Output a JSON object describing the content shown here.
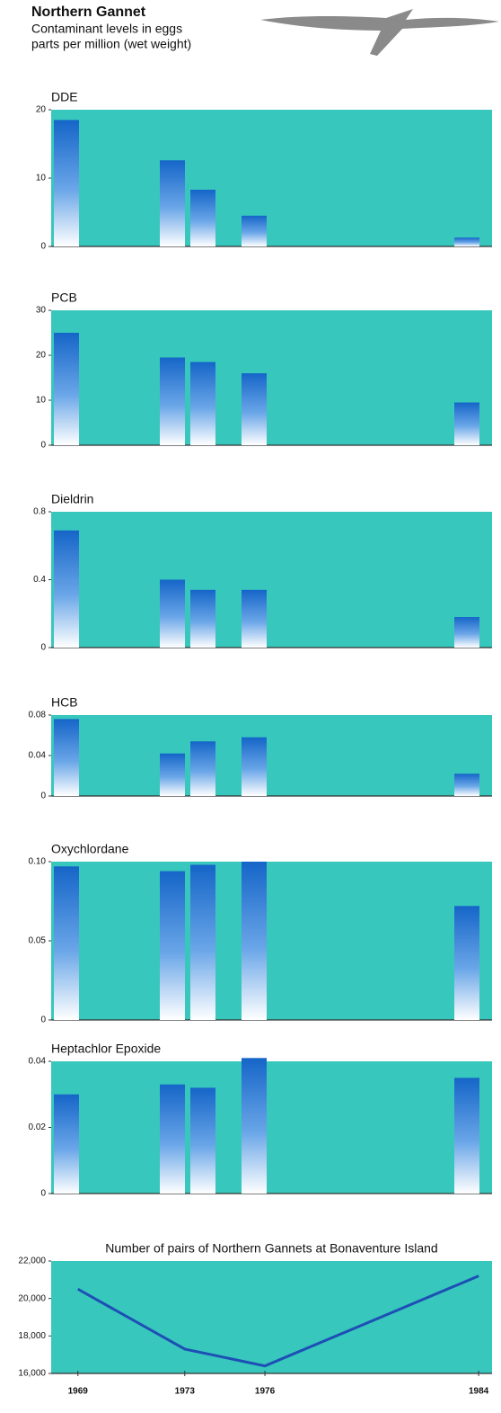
{
  "header": {
    "title": "Northern Gannet",
    "subtitle": "Contaminant levels in eggs",
    "units": "parts per million (wet weight)"
  },
  "chart_data": [
    {
      "type": "bar",
      "title": "DDE",
      "categories": [
        null,
        null,
        null,
        null,
        null
      ],
      "values": [
        18.5,
        12.6,
        8.3,
        4.5,
        1.3
      ],
      "ylim": [
        0,
        20
      ],
      "yticks": [
        0,
        10,
        20
      ],
      "color": "#1565c8",
      "background": "#38c7bd"
    },
    {
      "type": "bar",
      "title": "PCB",
      "categories": [
        null,
        null,
        null,
        null,
        null
      ],
      "values": [
        25,
        19.5,
        18.5,
        16,
        9.5
      ],
      "ylim": [
        0,
        30
      ],
      "yticks": [
        0,
        10,
        20,
        30
      ],
      "color": "#1565c8",
      "background": "#38c7bd"
    },
    {
      "type": "bar",
      "title": "Dieldrin",
      "categories": [
        null,
        null,
        null,
        null,
        null
      ],
      "values": [
        0.69,
        0.4,
        0.34,
        0.34,
        0.18
      ],
      "ylim": [
        0,
        0.8
      ],
      "yticks": [
        0,
        0.4,
        0.8
      ],
      "color": "#1565c8",
      "background": "#38c7bd"
    },
    {
      "type": "bar",
      "title": "HCB",
      "categories": [
        null,
        null,
        null,
        null,
        null
      ],
      "values": [
        0.076,
        0.042,
        0.054,
        0.058,
        0.022
      ],
      "ylim": [
        0,
        0.08
      ],
      "yticks": [
        0,
        0.04,
        0.08
      ],
      "color": "#1565c8",
      "background": "#38c7bd"
    },
    {
      "type": "bar",
      "title": "Oxychlordane",
      "categories": [
        null,
        null,
        null,
        null,
        null
      ],
      "values": [
        0.097,
        0.094,
        0.098,
        0.1,
        0.072
      ],
      "ylim": [
        0,
        0.1
      ],
      "yticks": [
        0,
        0.05,
        {
          "value": 0.1,
          "label": "0.10"
        }
      ],
      "color": "#1565c8",
      "background": "#38c7bd"
    },
    {
      "type": "bar",
      "title": "Heptachlor Epoxide",
      "categories": [
        null,
        null,
        null,
        null,
        null
      ],
      "values": [
        0.03,
        0.033,
        0.032,
        0.041,
        0.035
      ],
      "ylim": [
        0,
        0.04
      ],
      "yticks": [
        0,
        0.02,
        0.04
      ],
      "color": "#1565c8",
      "background": "#38c7bd"
    },
    {
      "type": "line",
      "title": "Number of pairs of Northern Gannets at Bonaventure Island",
      "x": [
        1969,
        1973,
        1976,
        1984
      ],
      "values": [
        20500,
        17300,
        16400,
        21200
      ],
      "xlim": [
        1968,
        1984.5
      ],
      "xticks": [
        1969,
        1973,
        1976,
        1984
      ],
      "ylim": [
        16000,
        22000
      ],
      "yticks": [
        {
          "value": 16000,
          "label": "16,000"
        },
        {
          "value": 18000,
          "label": "18,000"
        },
        {
          "value": 20000,
          "label": "20,000"
        },
        {
          "value": 22000,
          "label": "22,000"
        }
      ],
      "color": "#1d4fb5",
      "background": "#38c7bd"
    }
  ]
}
